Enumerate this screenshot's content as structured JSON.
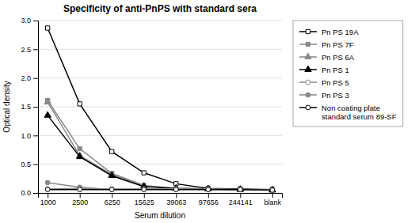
{
  "chart_data": {
    "type": "line",
    "title": "Specificity of anti-PnPS with standard sera",
    "xlabel": "Serum dilution",
    "ylabel": "Optical density",
    "categories": [
      "1000",
      "2500",
      "6250",
      "15625",
      "39063",
      "97656",
      "244141",
      "blank"
    ],
    "series": [
      {
        "name": "Pn PS 19A",
        "color": "#000000",
        "marker": "square-open",
        "values": [
          2.87,
          1.55,
          0.72,
          0.35,
          0.16,
          0.08,
          0.07,
          0.06
        ]
      },
      {
        "name": "Pn PS 7F",
        "color": "#888888",
        "marker": "square",
        "values": [
          1.61,
          0.77,
          0.34,
          0.13,
          0.08,
          0.07,
          0.06,
          0.05
        ]
      },
      {
        "name": "Pn PS 6A",
        "color": "#888888",
        "marker": "triangle",
        "values": [
          1.58,
          0.65,
          0.32,
          0.12,
          0.08,
          0.07,
          0.06,
          0.05
        ]
      },
      {
        "name": "Pn PS 1",
        "color": "#000000",
        "marker": "triangle",
        "values": [
          1.35,
          0.63,
          0.3,
          0.11,
          0.08,
          0.07,
          0.06,
          0.05
        ]
      },
      {
        "name": "Pn PS 5",
        "color": "#888888",
        "marker": "circle-open",
        "values": [
          0.07,
          0.08,
          0.07,
          0.07,
          0.07,
          0.06,
          0.06,
          0.05
        ]
      },
      {
        "name": "Pn PS 3",
        "color": "#888888",
        "marker": "circle",
        "values": [
          0.18,
          0.1,
          0.06,
          0.07,
          0.07,
          0.07,
          0.06,
          0.05
        ]
      },
      {
        "name": "Non coating plate\nstandard serum 89-SF",
        "color": "#000000",
        "marker": "circle-open",
        "values": [
          0.06,
          0.06,
          0.06,
          0.06,
          0.06,
          0.06,
          0.06,
          0.05
        ]
      }
    ],
    "ylim": [
      0.0,
      3.0
    ],
    "yticks": [
      {
        "value": 0,
        "label": "0.0"
      },
      0.5,
      {
        "value": 1,
        "label": "1.0"
      },
      1.5,
      {
        "value": 2,
        "label": "2.0"
      },
      2.5,
      {
        "value": 3,
        "label": "3.0"
      }
    ],
    "grid": true,
    "legend": "right"
  }
}
